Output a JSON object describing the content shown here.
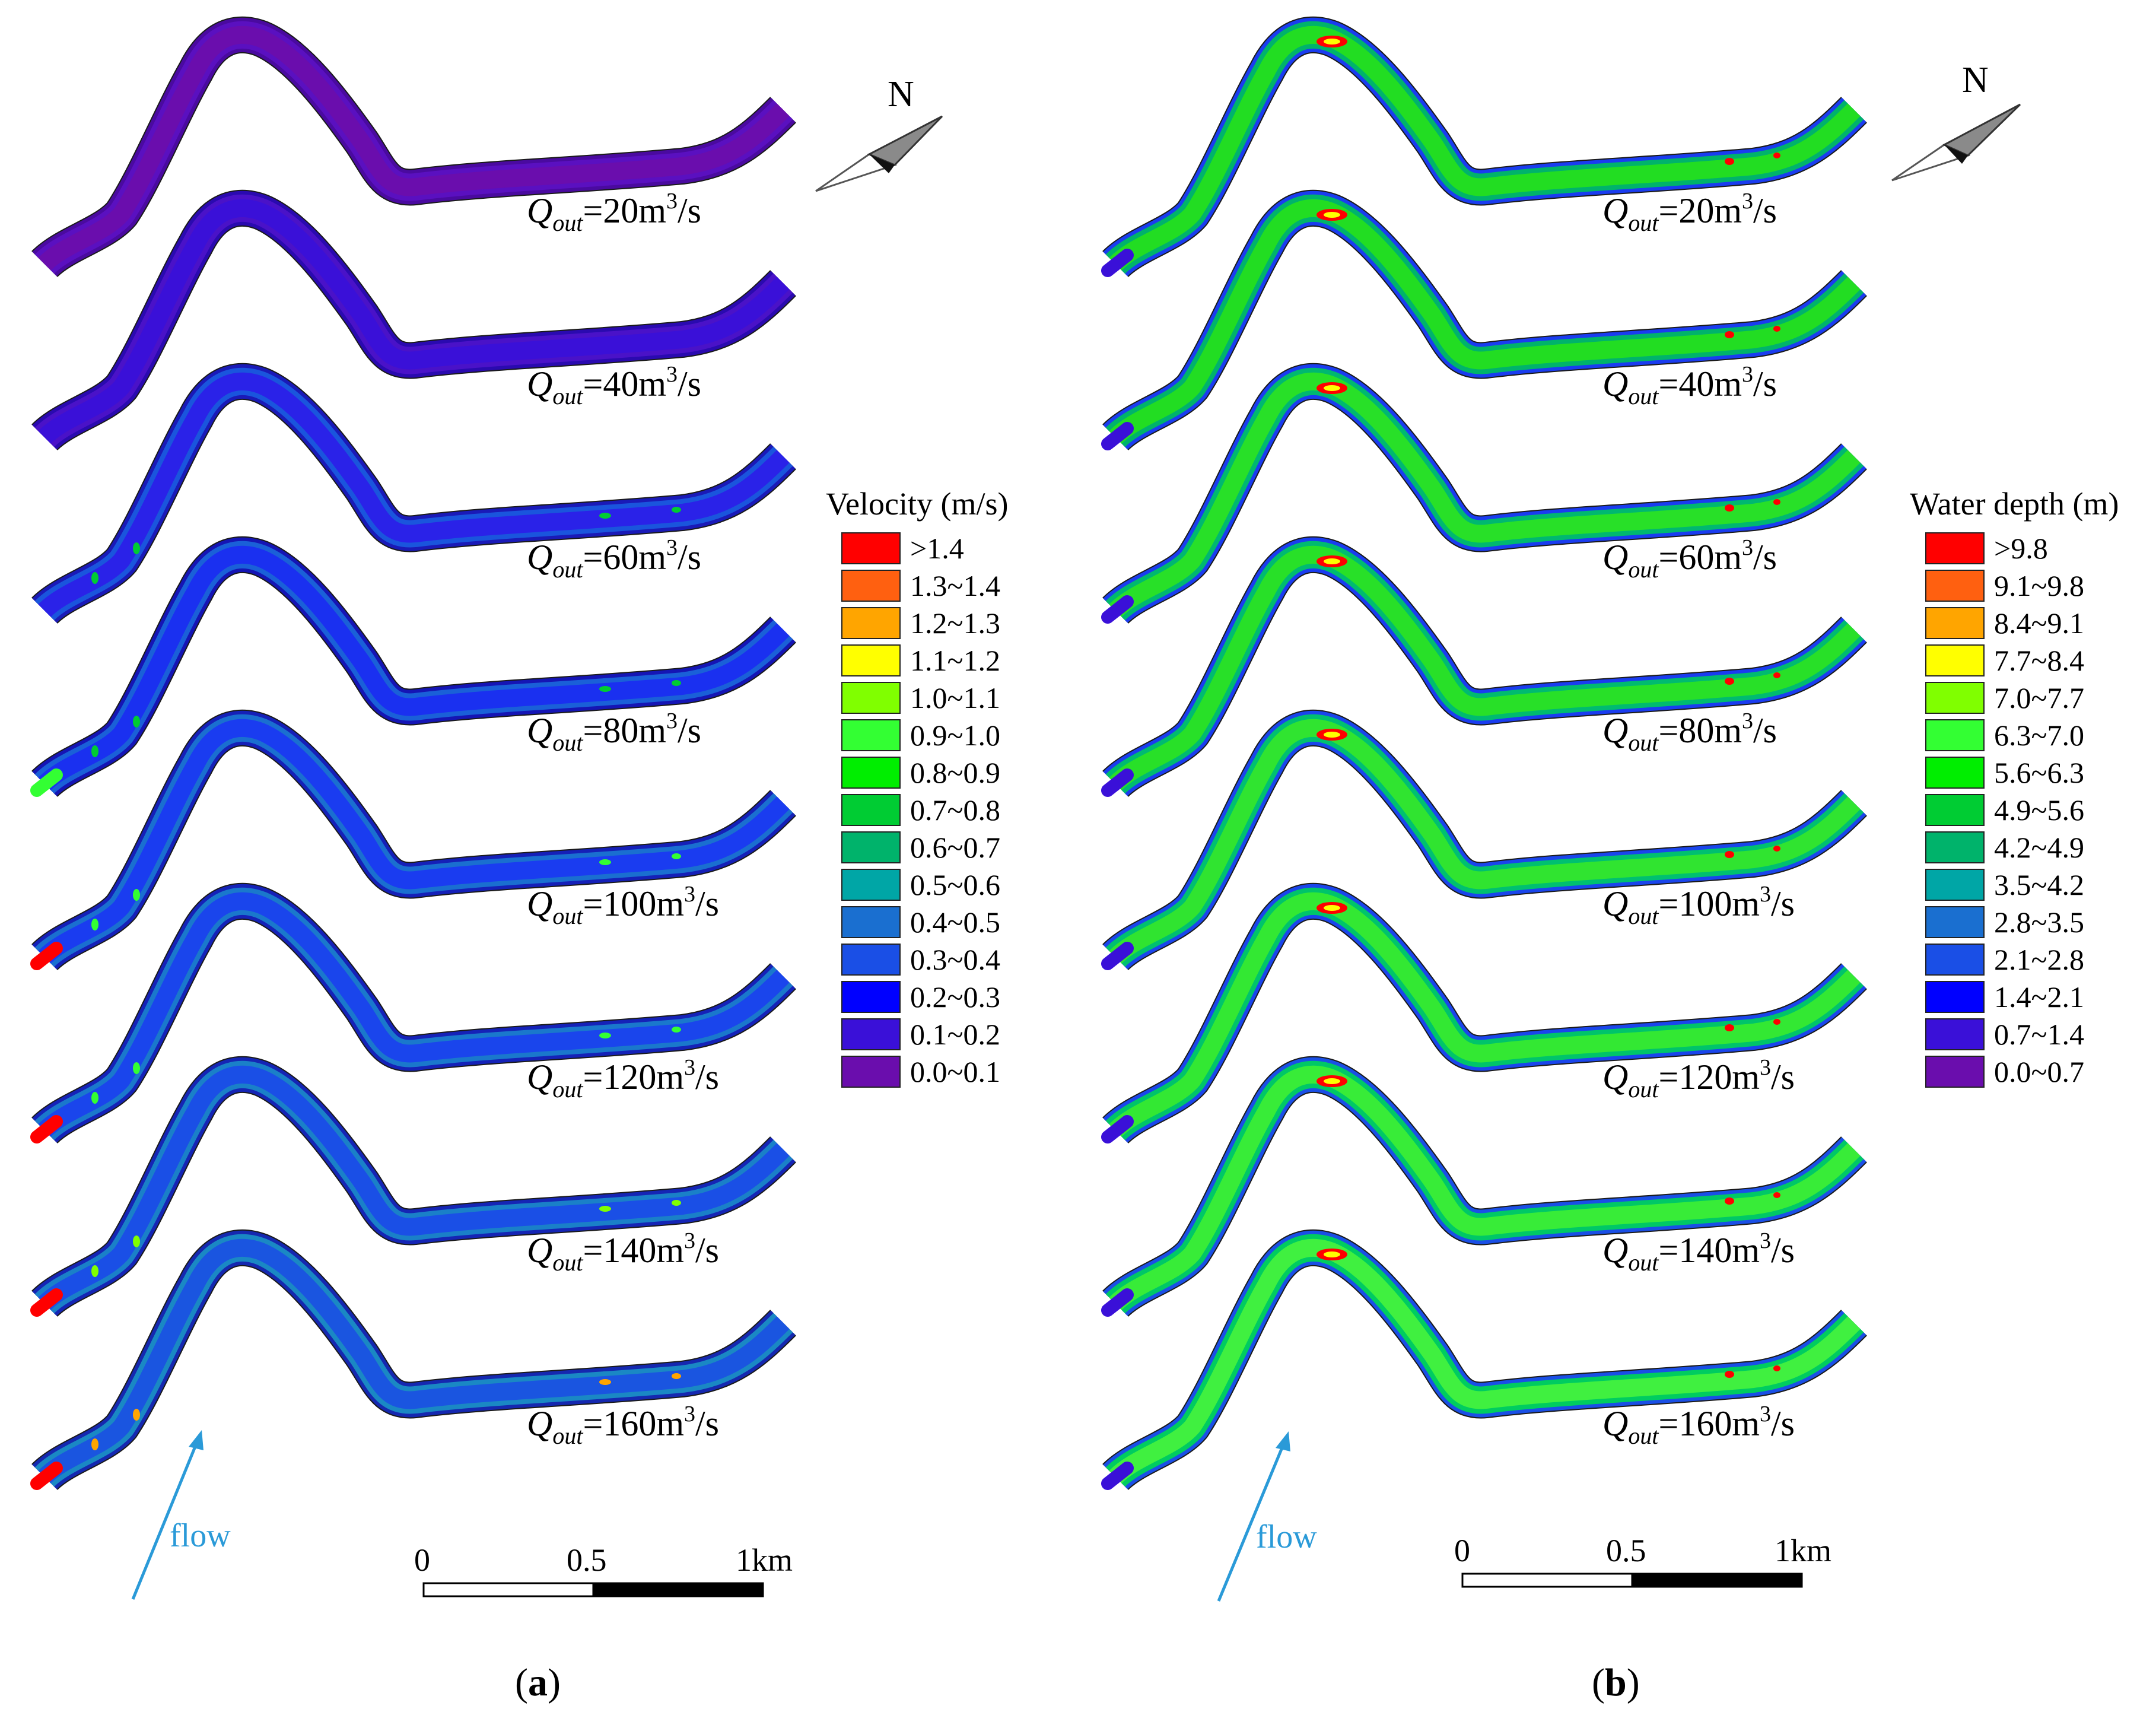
{
  "panels": [
    {
      "id": "a",
      "caption_letter": "a",
      "legend": {
        "title": "Velocity (m/s)",
        "classes": [
          {
            "label": ">1.4",
            "color": "#ff0000"
          },
          {
            "label": "1.3~1.4",
            "color": "#ff6010"
          },
          {
            "label": "1.2~1.3",
            "color": "#ffa500"
          },
          {
            "label": "1.1~1.2",
            "color": "#ffff00"
          },
          {
            "label": "1.0~1.1",
            "color": "#80ff00"
          },
          {
            "label": "0.9~1.0",
            "color": "#33ff33"
          },
          {
            "label": "0.8~0.9",
            "color": "#00ee00"
          },
          {
            "label": "0.7~0.8",
            "color": "#00cc33"
          },
          {
            "label": "0.6~0.7",
            "color": "#00b36b"
          },
          {
            "label": "0.5~0.6",
            "color": "#00a6a6"
          },
          {
            "label": "0.4~0.5",
            "color": "#1a6fd0"
          },
          {
            "label": "0.3~0.4",
            "color": "#1a4fe6"
          },
          {
            "label": "0.2~0.3",
            "color": "#0000ff"
          },
          {
            "label": "0.1~0.2",
            "color": "#3a10d8"
          },
          {
            "label": "0.0~0.1",
            "color": "#6a0dad"
          }
        ]
      },
      "scenarios": [
        {
          "q_value": "20",
          "unit": "m",
          "exp": "3",
          "per": "/s",
          "main": "#6a0dad",
          "second": "#5a10c0",
          "bank": "#4a0aa0",
          "hot": "",
          "inlet": ""
        },
        {
          "q_value": "40",
          "unit": "m",
          "exp": "3",
          "per": "/s",
          "main": "#3a10d8",
          "second": "#4a12c8",
          "bank": "#2a0ab0",
          "hot": "",
          "inlet": ""
        },
        {
          "q_value": "60",
          "unit": "m",
          "exp": "3",
          "per": "/s",
          "main": "#2a22e8",
          "second": "#1a55dd",
          "bank": "#1a1ab8",
          "hot": "#00cc33",
          "inlet": ""
        },
        {
          "q_value": "80",
          "unit": "m",
          "exp": "3",
          "per": "/s",
          "main": "#1a30f0",
          "second": "#1a60d8",
          "bank": "#1515b5",
          "hot": "#00cc33",
          "inlet": "#33ff33"
        },
        {
          "q_value": "100",
          "unit": "m",
          "exp": "3",
          "per": "/s",
          "main": "#1a3cf0",
          "second": "#1a6fd0",
          "bank": "#1520b8",
          "hot": "#33ff33",
          "inlet": "#ff0000"
        },
        {
          "q_value": "120",
          "unit": "m",
          "exp": "3",
          "per": "/s",
          "main": "#1a45ec",
          "second": "#1a78cc",
          "bank": "#1522b8",
          "hot": "#33ff33",
          "inlet": "#ff0000"
        },
        {
          "q_value": "140",
          "unit": "m",
          "exp": "3",
          "per": "/s",
          "main": "#1a4fe6",
          "second": "#1a80c8",
          "bank": "#1525b5",
          "hot": "#80ff00",
          "inlet": "#ff0000"
        },
        {
          "q_value": "160",
          "unit": "m",
          "exp": "3",
          "per": "/s",
          "main": "#1a55e0",
          "second": "#1a88c4",
          "bank": "#1528b0",
          "hot": "#ffa500",
          "inlet": "#ff0000"
        }
      ],
      "flow_label": "flow",
      "north_label": "N",
      "scale_ticks": [
        "0",
        "0.5",
        "1km"
      ]
    },
    {
      "id": "b",
      "caption_letter": "b",
      "legend": {
        "title": "Water depth (m)",
        "classes": [
          {
            "label": ">9.8",
            "color": "#ff0000"
          },
          {
            "label": "9.1~9.8",
            "color": "#ff6010"
          },
          {
            "label": "8.4~9.1",
            "color": "#ffa500"
          },
          {
            "label": "7.7~8.4",
            "color": "#ffff00"
          },
          {
            "label": "7.0~7.7",
            "color": "#80ff00"
          },
          {
            "label": "6.3~7.0",
            "color": "#33ff33"
          },
          {
            "label": "5.6~6.3",
            "color": "#00ee00"
          },
          {
            "label": "4.9~5.6",
            "color": "#00cc33"
          },
          {
            "label": "4.2~4.9",
            "color": "#00b36b"
          },
          {
            "label": "3.5~4.2",
            "color": "#00a6a6"
          },
          {
            "label": "2.8~3.5",
            "color": "#1a6fd0"
          },
          {
            "label": "2.1~2.8",
            "color": "#1a4fe6"
          },
          {
            "label": "1.4~2.1",
            "color": "#0000ff"
          },
          {
            "label": "0.7~1.4",
            "color": "#3a10d8"
          },
          {
            "label": "0.0~0.7",
            "color": "#6a0dad"
          }
        ]
      },
      "scenarios": [
        {
          "q_value": "20",
          "unit": "m",
          "exp": "3",
          "per": "/s",
          "main": "#22dd22",
          "second": "#00b36b",
          "bank": "#1a3cf0",
          "hot": "#ff0000",
          "inlet": "#3a10d8"
        },
        {
          "q_value": "40",
          "unit": "m",
          "exp": "3",
          "per": "/s",
          "main": "#22dd22",
          "second": "#00b36b",
          "bank": "#1a3cf0",
          "hot": "#ff0000",
          "inlet": "#3a10d8"
        },
        {
          "q_value": "60",
          "unit": "m",
          "exp": "3",
          "per": "/s",
          "main": "#28e028",
          "second": "#00b870",
          "bank": "#1a3cf0",
          "hot": "#ff0000",
          "inlet": "#3a10d8"
        },
        {
          "q_value": "80",
          "unit": "m",
          "exp": "3",
          "per": "/s",
          "main": "#28e028",
          "second": "#00bb70",
          "bank": "#1a3cf0",
          "hot": "#ff0000",
          "inlet": "#3a10d8"
        },
        {
          "q_value": "100",
          "unit": "m",
          "exp": "3",
          "per": "/s",
          "main": "#30e430",
          "second": "#00c070",
          "bank": "#1a45ec",
          "hot": "#ff0000",
          "inlet": "#3a10d8"
        },
        {
          "q_value": "120",
          "unit": "m",
          "exp": "3",
          "per": "/s",
          "main": "#33e833",
          "second": "#00c46a",
          "bank": "#1a45ec",
          "hot": "#ff0000",
          "inlet": "#3a10d8"
        },
        {
          "q_value": "140",
          "unit": "m",
          "exp": "3",
          "per": "/s",
          "main": "#38ec38",
          "second": "#00c866",
          "bank": "#1a4fe6",
          "hot": "#ff0000",
          "inlet": "#3a10d8"
        },
        {
          "q_value": "160",
          "unit": "m",
          "exp": "3",
          "per": "/s",
          "main": "#40f040",
          "second": "#00cc60",
          "bank": "#1a4fe6",
          "hot": "#ff0000",
          "inlet": "#3a10d8"
        }
      ],
      "flow_label": "flow",
      "north_label": "N",
      "scale_ticks": [
        "0",
        "0.5",
        "1km"
      ]
    }
  ]
}
